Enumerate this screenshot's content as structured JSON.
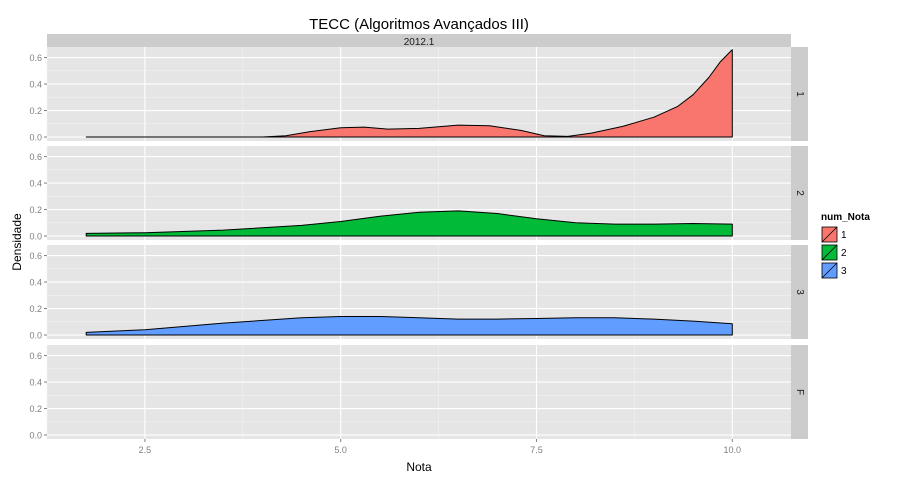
{
  "chart_data": {
    "type": "area",
    "title": "TECC (Algoritmos Avançados III)",
    "column_strip": "2012.1",
    "xlabel": "Nota",
    "ylabel": "Densidade",
    "xlim": [
      1.25,
      10.75
    ],
    "ylim": [
      -0.03,
      0.68
    ],
    "x_ticks": [
      2.5,
      5.0,
      7.5,
      10.0
    ],
    "x_tick_labels": [
      "2.5",
      "5.0",
      "7.5",
      "10.0"
    ],
    "y_ticks": [
      0,
      0.2,
      0.4,
      0.6
    ],
    "y_tick_labels": [
      "0.0",
      "0.2",
      "0.4",
      "0.6"
    ],
    "grid": true,
    "legend": {
      "title": "num_Nota",
      "position": "right",
      "entries": [
        "1",
        "2",
        "3"
      ]
    },
    "panels": [
      {
        "name": "1",
        "color": "#F8766D",
        "x": [
          1.75,
          4.0,
          4.3,
          4.6,
          5.0,
          5.3,
          5.6,
          6.0,
          6.5,
          6.9,
          7.3,
          7.6,
          7.9,
          8.2,
          8.6,
          9.0,
          9.3,
          9.5,
          9.7,
          9.85,
          10.0
        ],
        "y": [
          0.0,
          0.0,
          0.01,
          0.04,
          0.07,
          0.075,
          0.06,
          0.065,
          0.09,
          0.085,
          0.05,
          0.01,
          0.005,
          0.03,
          0.08,
          0.15,
          0.23,
          0.32,
          0.45,
          0.57,
          0.66
        ]
      },
      {
        "name": "2",
        "color": "#00BA38",
        "x": [
          1.75,
          2.5,
          3.5,
          4.5,
          5.0,
          5.5,
          6.0,
          6.5,
          7.0,
          7.5,
          8.0,
          8.5,
          9.0,
          9.5,
          10.0
        ],
        "y": [
          0.02,
          0.025,
          0.045,
          0.08,
          0.11,
          0.15,
          0.18,
          0.19,
          0.17,
          0.13,
          0.1,
          0.09,
          0.09,
          0.095,
          0.09
        ]
      },
      {
        "name": "3",
        "color": "#619CFF",
        "x": [
          1.75,
          2.5,
          3.5,
          4.5,
          5.0,
          5.5,
          6.0,
          6.5,
          7.0,
          7.5,
          8.0,
          8.5,
          9.0,
          9.5,
          10.0
        ],
        "y": [
          0.02,
          0.04,
          0.09,
          0.13,
          0.14,
          0.14,
          0.13,
          0.12,
          0.12,
          0.125,
          0.13,
          0.13,
          0.12,
          0.105,
          0.085
        ]
      },
      {
        "name": "F",
        "color": "#CCCCCC",
        "x": [],
        "y": []
      }
    ]
  }
}
